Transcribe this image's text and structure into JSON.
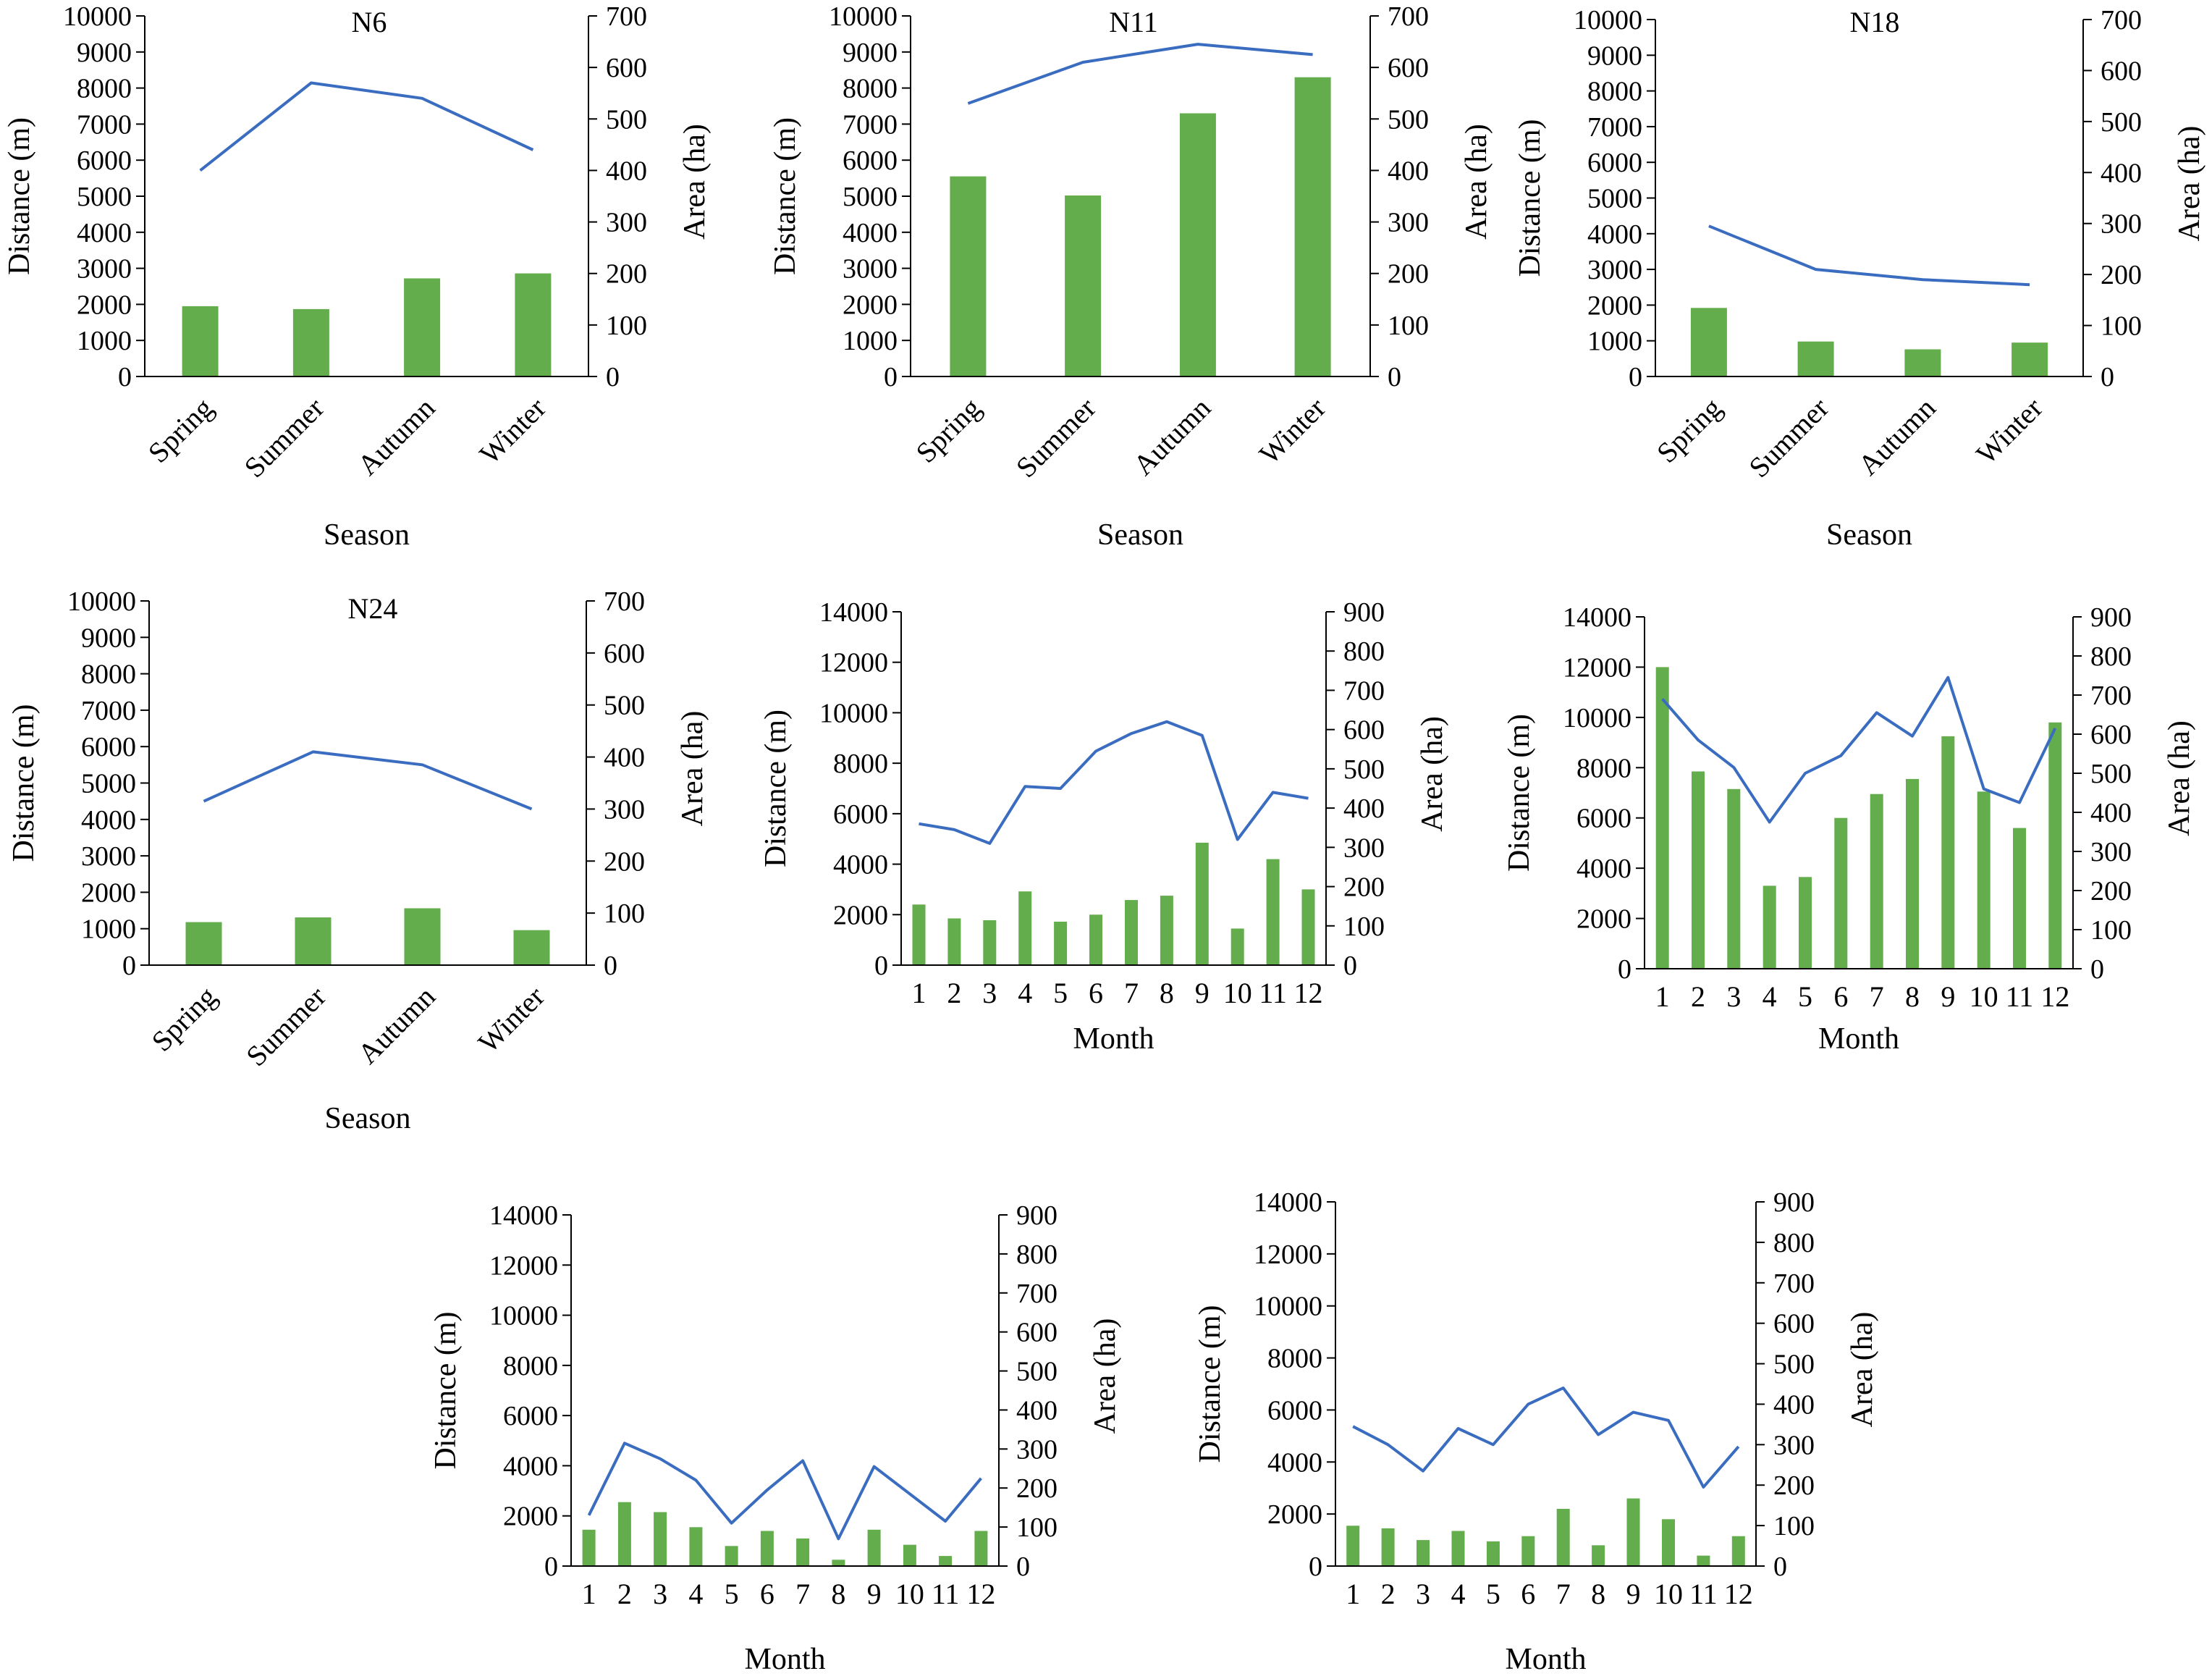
{
  "figure": {
    "bar_color": "#63AD4C",
    "line_color": "#3A6CC0",
    "axis_color": "#000000"
  },
  "chart_data": [
    {
      "type": "bar",
      "title": "N6",
      "xlabel": "Season",
      "ylabel": "Distance (m)",
      "y2label": "Area (ha)",
      "categories": [
        "Spring",
        "Summer",
        "Autumn",
        "Winter"
      ],
      "ylim": [
        0,
        10000
      ],
      "y2lim": [
        0,
        700
      ],
      "yticks": [
        "0",
        "1000",
        "2000",
        "3000",
        "4000",
        "5000",
        "6000",
        "7000",
        "8000",
        "9000",
        "10000"
      ],
      "y2ticks": [
        "0",
        "100",
        "200",
        "300",
        "400",
        "500",
        "600",
        "700"
      ],
      "bars": [
        1950,
        1870,
        2720,
        2860
      ],
      "line": [
        400,
        570,
        540,
        440
      ],
      "grid": false,
      "legend": "none"
    },
    {
      "type": "bar",
      "title": "N11",
      "xlabel": "Season",
      "ylabel": "Distance (m)",
      "y2label": "Area (ha)",
      "categories": [
        "Spring",
        "Summer",
        "Autumn",
        "Winter"
      ],
      "ylim": [
        0,
        10000
      ],
      "y2lim": [
        0,
        700
      ],
      "yticks": [
        "0",
        "1000",
        "2000",
        "3000",
        "4000",
        "5000",
        "6000",
        "7000",
        "8000",
        "9000",
        "10000"
      ],
      "y2ticks": [
        "0",
        "100",
        "200",
        "300",
        "400",
        "500",
        "600",
        "700"
      ],
      "bars": [
        5550,
        5020,
        7300,
        8300
      ],
      "line": [
        530,
        610,
        645,
        625
      ],
      "grid": false,
      "legend": "none"
    },
    {
      "type": "bar",
      "title": "N18",
      "xlabel": "Season",
      "ylabel": "Distance (m)",
      "y2label": "Area (ha)",
      "categories": [
        "Spring",
        "Summer",
        "Autumn",
        "Winter"
      ],
      "ylim": [
        0,
        10000
      ],
      "y2lim": [
        0,
        700
      ],
      "yticks": [
        "0",
        "1000",
        "2000",
        "3000",
        "4000",
        "5000",
        "6000",
        "7000",
        "8000",
        "9000",
        "10000"
      ],
      "y2ticks": [
        "0",
        "100",
        "200",
        "300",
        "400",
        "500",
        "600",
        "700"
      ],
      "bars": [
        1920,
        980,
        760,
        950
      ],
      "line": [
        295,
        210,
        190,
        180
      ],
      "grid": false,
      "legend": "none"
    },
    {
      "type": "bar",
      "title": "N24",
      "xlabel": "Season",
      "ylabel": "Distance (m)",
      "y2label": "Area (ha)",
      "categories": [
        "Spring",
        "Summer",
        "Autumn",
        "Winter"
      ],
      "ylim": [
        0,
        10000
      ],
      "y2lim": [
        0,
        700
      ],
      "yticks": [
        "0",
        "1000",
        "2000",
        "3000",
        "4000",
        "5000",
        "6000",
        "7000",
        "8000",
        "9000",
        "10000"
      ],
      "y2ticks": [
        "0",
        "100",
        "200",
        "300",
        "400",
        "500",
        "600",
        "700"
      ],
      "bars": [
        1180,
        1310,
        1560,
        960
      ],
      "line": [
        315,
        410,
        385,
        300
      ],
      "grid": false,
      "legend": "none"
    },
    {
      "type": "bar",
      "title": "",
      "xlabel": "Month",
      "ylabel": "Distance (m)",
      "y2label": "Area (ha)",
      "categories": [
        "1",
        "2",
        "3",
        "4",
        "5",
        "6",
        "7",
        "8",
        "9",
        "10",
        "11",
        "12"
      ],
      "ylim": [
        0,
        14000
      ],
      "y2lim": [
        0,
        900
      ],
      "yticks": [
        "0",
        "2000",
        "4000",
        "6000",
        "8000",
        "10000",
        "12000",
        "14000"
      ],
      "y2ticks": [
        "0",
        "100",
        "200",
        "300",
        "400",
        "500",
        "600",
        "700",
        "800",
        "900"
      ],
      "bars": [
        2400,
        1850,
        1780,
        2920,
        1720,
        2000,
        2580,
        2750,
        4850,
        1450,
        4200,
        3000
      ],
      "line": [
        360,
        345,
        310,
        455,
        450,
        545,
        590,
        620,
        585,
        320,
        440,
        425
      ],
      "grid": false,
      "legend": "none"
    },
    {
      "type": "bar",
      "title": "",
      "xlabel": "Month",
      "ylabel": "Distance (m)",
      "y2label": "Area (ha)",
      "categories": [
        "1",
        "2",
        "3",
        "4",
        "5",
        "6",
        "7",
        "8",
        "9",
        "10",
        "11",
        "12"
      ],
      "ylim": [
        0,
        14000
      ],
      "y2lim": [
        0,
        900
      ],
      "yticks": [
        "0",
        "2000",
        "4000",
        "6000",
        "8000",
        "10000",
        "12000",
        "14000"
      ],
      "y2ticks": [
        "0",
        "100",
        "200",
        "300",
        "400",
        "500",
        "600",
        "700",
        "800",
        "900"
      ],
      "bars": [
        12000,
        7850,
        7150,
        3300,
        3650,
        6000,
        6950,
        7550,
        9250,
        7050,
        5600,
        9800
      ],
      "line": [
        690,
        585,
        515,
        375,
        500,
        545,
        655,
        595,
        745,
        460,
        425,
        615
      ],
      "grid": false,
      "legend": "none"
    },
    {
      "type": "bar",
      "title": "",
      "xlabel": "Month",
      "ylabel": "Distance (m)",
      "y2label": "Area (ha)",
      "categories": [
        "1",
        "2",
        "3",
        "4",
        "5",
        "6",
        "7",
        "8",
        "9",
        "10",
        "11",
        "12"
      ],
      "ylim": [
        0,
        14000
      ],
      "y2lim": [
        0,
        900
      ],
      "yticks": [
        "0",
        "2000",
        "4000",
        "6000",
        "8000",
        "10000",
        "12000",
        "14000"
      ],
      "y2ticks": [
        "0",
        "100",
        "200",
        "300",
        "400",
        "500",
        "600",
        "700",
        "800",
        "900"
      ],
      "bars": [
        1450,
        2550,
        2150,
        1550,
        800,
        1400,
        1100,
        250,
        1450,
        850,
        400,
        1400
      ],
      "line": [
        130,
        315,
        275,
        220,
        110,
        195,
        270,
        70,
        255,
        185,
        115,
        225
      ],
      "grid": false,
      "legend": "none"
    },
    {
      "type": "bar",
      "title": "",
      "xlabel": "Month",
      "ylabel": "Distance (m)",
      "y2label": "Area (ha)",
      "categories": [
        "1",
        "2",
        "3",
        "4",
        "5",
        "6",
        "7",
        "8",
        "9",
        "10",
        "11",
        "12"
      ],
      "ylim": [
        0,
        14000
      ],
      "y2lim": [
        0,
        900
      ],
      "yticks": [
        "0",
        "2000",
        "4000",
        "6000",
        "8000",
        "10000",
        "12000",
        "14000"
      ],
      "y2ticks": [
        "0",
        "100",
        "200",
        "300",
        "400",
        "500",
        "600",
        "700",
        "800",
        "900"
      ],
      "bars": [
        1550,
        1450,
        1000,
        1350,
        950,
        1150,
        2200,
        800,
        2600,
        1800,
        400,
        1150
      ],
      "line": [
        345,
        300,
        235,
        340,
        300,
        400,
        440,
        325,
        380,
        360,
        195,
        295
      ],
      "grid": false,
      "legend": "none"
    }
  ]
}
